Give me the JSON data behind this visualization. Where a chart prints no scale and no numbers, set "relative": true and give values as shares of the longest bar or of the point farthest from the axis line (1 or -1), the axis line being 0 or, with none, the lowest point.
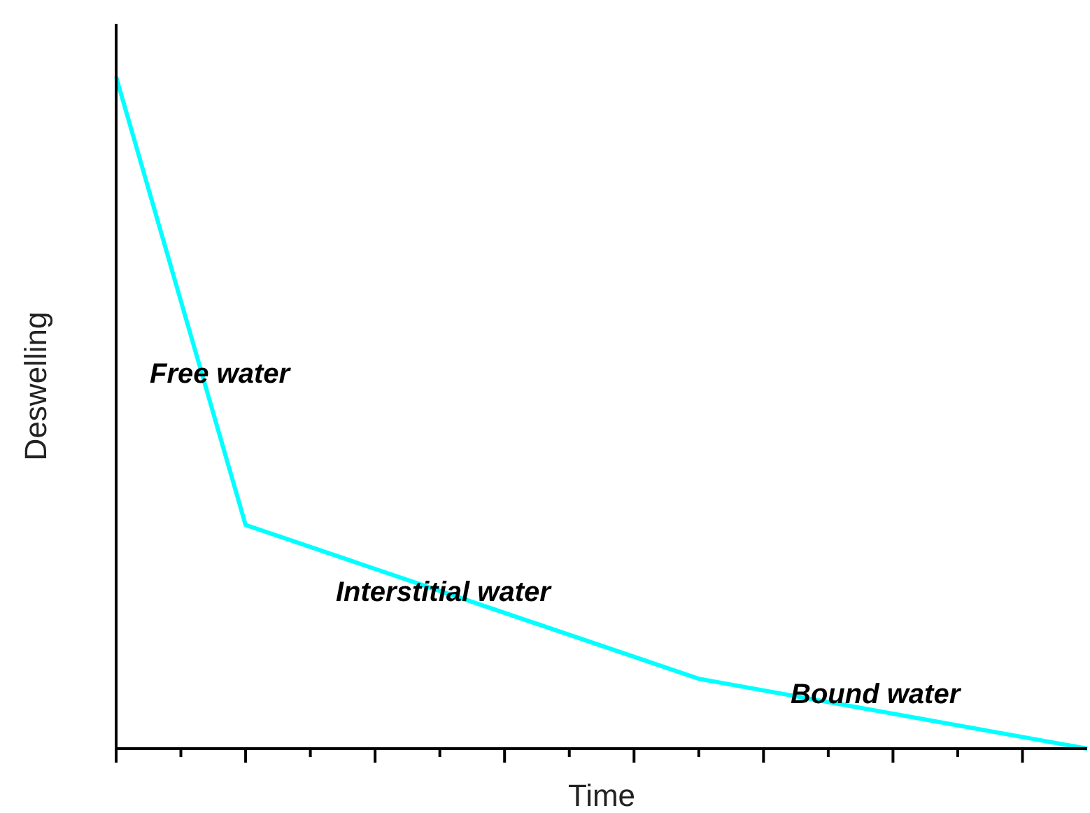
{
  "chart_data": {
    "type": "line",
    "xlabel": "Time",
    "ylabel": "Deswelling",
    "relative": true,
    "categories": [
      null,
      null,
      null,
      null,
      null,
      null,
      null,
      null,
      null,
      null,
      null,
      null,
      null,
      null,
      null,
      null
    ],
    "series": [
      {
        "color": "#00ffff",
        "values": [
          1,
          null,
          0.333,
          null,
          null,
          null,
          null,
          null,
          null,
          0.104,
          null,
          null,
          null,
          null,
          null,
          0
        ]
      }
    ],
    "annotations": [
      "Free water",
      "Interstitial water",
      "Bound water"
    ],
    "marker": "none",
    "line_style": "solid",
    "grid": false,
    "legend": false
  }
}
